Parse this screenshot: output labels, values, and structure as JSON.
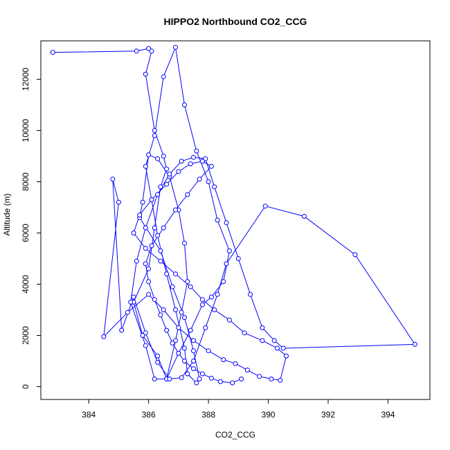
{
  "chart_data": {
    "type": "line",
    "title": "HIPPO2 Northbound CO2_CCG",
    "xlabel": "CO2_CCG",
    "ylabel": "Altitude (m)",
    "xlim": [
      382.4,
      395.4
    ],
    "ylim": [
      -500,
      13500
    ],
    "xticks": [
      "384",
      "386",
      "388",
      "390",
      "392",
      "394"
    ],
    "yticks": [
      "0",
      "2000",
      "4000",
      "6000",
      "8000",
      "10000",
      "12000"
    ],
    "xtick_values": [
      384,
      386,
      388,
      390,
      392,
      394
    ],
    "ytick_values": [
      0,
      2000,
      4000,
      6000,
      8000,
      10000,
      12000
    ],
    "grid": false,
    "series": [
      {
        "color": "#0000ff",
        "marker": "open-circle",
        "x": [
          382.8,
          385.6,
          386.0,
          386.1,
          385.9,
          386.2,
          386.5,
          386.6,
          386.4,
          386.2,
          386.0,
          385.5,
          385.8,
          386.3,
          386.6,
          386.9,
          387.1,
          387.3,
          387.2,
          387.0,
          386.7,
          386.3,
          386.0,
          385.8,
          385.7,
          386.4,
          386.8,
          387.2,
          387.5,
          387.7,
          387.6,
          387.3,
          387.2,
          386.9,
          386.6,
          386.3,
          386.1,
          385.9,
          386.2,
          386.5,
          386.9,
          387.2,
          387.6,
          388.0,
          388.3,
          388.7,
          388.5,
          388.1,
          387.8,
          387.4,
          387.0,
          386.6,
          386.2,
          385.9,
          385.4,
          385.6,
          385.9,
          386.3,
          386.7,
          387.1,
          387.5,
          387.9,
          388.2,
          388.6,
          389.0,
          389.4,
          389.8,
          390.2,
          390.5,
          394.9,
          392.9,
          391.2,
          389.9,
          388.6,
          388.3,
          387.9,
          387.5,
          387.1,
          386.7,
          386.3,
          385.9,
          385.5,
          385.1,
          384.8,
          385.0,
          384.5,
          385.3,
          386.0,
          386.5,
          387.0,
          387.5,
          388.0,
          388.5,
          388.9,
          389.3,
          389.7,
          390.1,
          390.4,
          390.6,
          390.3,
          389.8,
          389.2,
          388.7,
          388.2,
          387.8,
          387.4,
          386.9,
          386.4,
          385.9,
          385.5,
          385.7,
          386.1,
          386.6,
          387.0,
          387.4,
          387.8,
          388.1,
          387.7,
          387.3,
          386.9,
          386.5,
          386.1,
          385.9,
          386.0,
          386.2,
          386.4,
          386.6,
          386.8,
          387.0,
          387.2,
          387.5,
          387.8,
          388.1,
          388.4,
          388.8,
          389.1
        ],
        "y": [
          13050,
          13100,
          13200,
          13100,
          12200,
          10000,
          9000,
          8500,
          7800,
          6200,
          4600,
          3300,
          2000,
          1200,
          300,
          1800,
          2900,
          4100,
          5600,
          6900,
          8200,
          8900,
          9050,
          7200,
          6600,
          5300,
          3900,
          2700,
          1400,
          300,
          150,
          500,
          1500,
          3000,
          4400,
          5900,
          7300,
          8600,
          9800,
          12100,
          13250,
          11000,
          9200,
          8000,
          6500,
          5300,
          4100,
          3500,
          3200,
          2200,
          1300,
          300,
          300,
          1600,
          3300,
          4900,
          6200,
          7500,
          8300,
          8800,
          8950,
          8900,
          7800,
          6400,
          5000,
          3600,
          2300,
          1800,
          1500,
          1650,
          5150,
          6650,
          7050,
          4800,
          3600,
          2300,
          1000,
          350,
          300,
          950,
          2100,
          3500,
          2200,
          8100,
          7200,
          1950,
          2900,
          3600,
          3000,
          2300,
          1800,
          1400,
          1050,
          900,
          650,
          400,
          300,
          250,
          1200,
          1500,
          1800,
          2100,
          2600,
          3000,
          3400,
          3900,
          4400,
          4900,
          5400,
          6000,
          6700,
          7300,
          7900,
          8400,
          8700,
          8800,
          8600,
          8100,
          7500,
          6900,
          6200,
          5500,
          4800,
          4100,
          3400,
          2800,
          2200,
          1700,
          1300,
          1000,
          700,
          500,
          330,
          200,
          150,
          300
        ]
      }
    ]
  }
}
